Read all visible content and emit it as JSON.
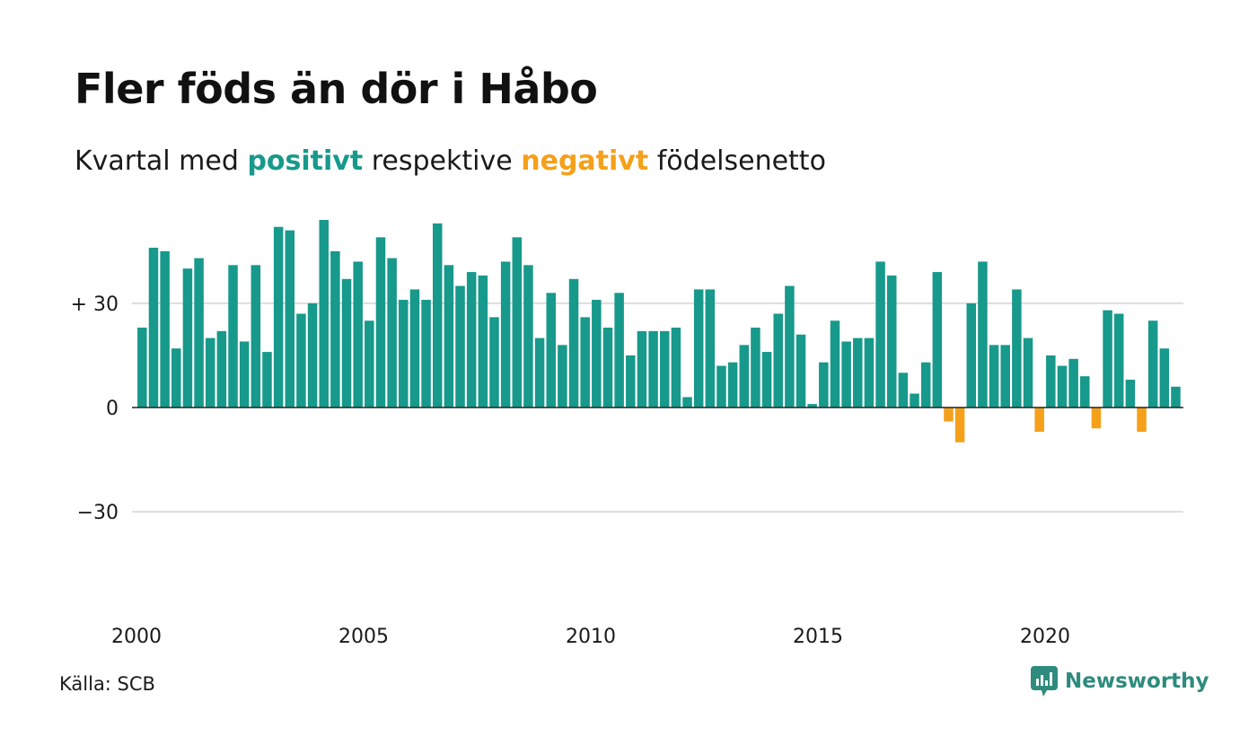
{
  "header": {
    "title": "Fler föds än dör i Håbo",
    "subtitle_prefix": "Kvartal med",
    "subtitle_positive": "positivt",
    "subtitle_middle": "respektive",
    "subtitle_negative": "negativt",
    "subtitle_suffix": "födelsenetto"
  },
  "footer": {
    "source": "Källa: SCB",
    "logo_text": "Newsworthy"
  },
  "colors": {
    "positive": "#17998b",
    "negative": "#f5a01a",
    "grid": "#dddddd",
    "baseline": "#222222",
    "logo": "#2e8b7e"
  },
  "chart_data": {
    "type": "bar",
    "ylim": [
      -30,
      50
    ],
    "yticks": [
      30,
      0,
      -30
    ],
    "ytick_labels": [
      "+ 30",
      "0",
      "−30"
    ],
    "xtick_labels": [
      "2000",
      "2005",
      "2010",
      "2015",
      "2020"
    ],
    "xtick_years": [
      2000,
      2005,
      2010,
      2015,
      2020
    ],
    "start_year": 2000,
    "start_quarter": 1,
    "grid": true,
    "values": [
      23,
      46,
      45,
      17,
      40,
      43,
      20,
      22,
      41,
      19,
      41,
      16,
      52,
      51,
      27,
      30,
      54,
      45,
      37,
      42,
      25,
      49,
      43,
      31,
      34,
      31,
      53,
      41,
      35,
      39,
      38,
      26,
      42,
      49,
      41,
      20,
      33,
      18,
      37,
      26,
      31,
      23,
      33,
      15,
      22,
      22,
      22,
      23,
      3,
      34,
      34,
      12,
      13,
      18,
      23,
      16,
      27,
      35,
      21,
      1,
      13,
      25,
      19,
      20,
      20,
      42,
      38,
      10,
      4,
      13,
      39,
      -4,
      -10,
      30,
      42,
      18,
      18,
      34,
      20,
      -7,
      15,
      12,
      14,
      9,
      -6,
      28,
      27,
      8,
      -7,
      25,
      17,
      6
    ]
  }
}
